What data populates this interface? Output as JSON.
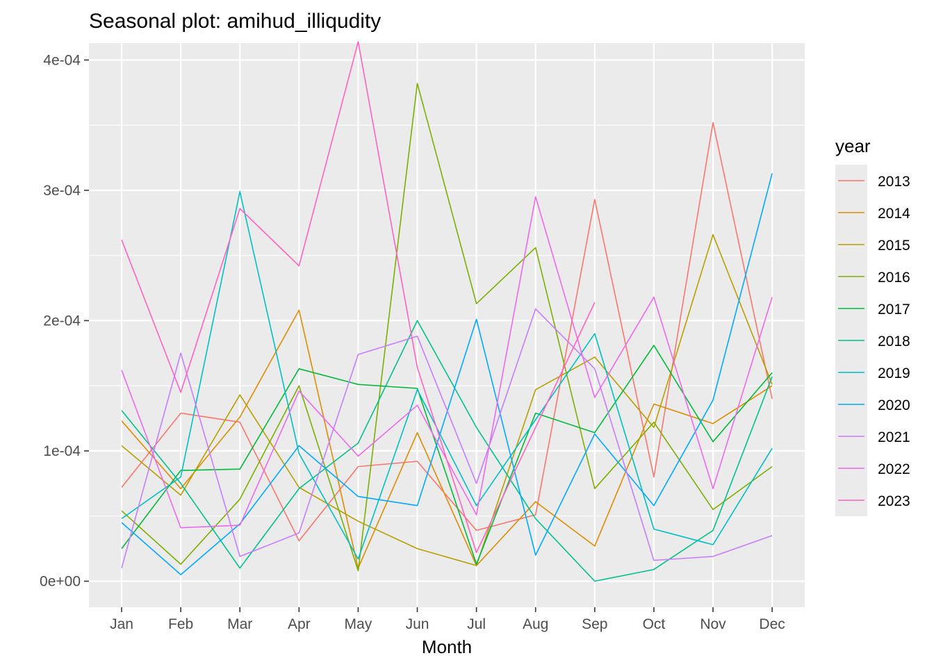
{
  "chart_data": {
    "type": "line",
    "title": "Seasonal plot: amihud_illiqudity",
    "xlabel": "Month",
    "ylabel": "",
    "categories": [
      "Jan",
      "Feb",
      "Mar",
      "Apr",
      "May",
      "Jun",
      "Jul",
      "Aug",
      "Sep",
      "Oct",
      "Nov",
      "Dec"
    ],
    "ylim": [
      -2e-05,
      0.000413
    ],
    "yticks": [
      0,
      0.0001,
      0.0002,
      0.0003,
      0.0004
    ],
    "ytick_labels": [
      "0e+00",
      "1e-04",
      "2e-04",
      "3e-04",
      "4e-04"
    ],
    "grid": true,
    "legend": {
      "title": "year",
      "position": "right"
    },
    "series": [
      {
        "name": "2013",
        "color": "#F8766D",
        "values": [
          7.2e-05,
          0.000129,
          0.000122,
          3.1e-05,
          8.8e-05,
          9.2e-05,
          3.9e-05,
          5.1e-05,
          0.000293,
          8e-05,
          0.000352,
          0.00014
        ]
      },
      {
        "name": "2014",
        "color": "#DE8C00",
        "values": [
          0.000123,
          7.1e-05,
          0.000126,
          0.000208,
          1e-05,
          0.000114,
          1.2e-05,
          6.1e-05,
          2.7e-05,
          0.000136,
          0.000121,
          0.00015
        ]
      },
      {
        "name": "2015",
        "color": "#B79F00",
        "values": [
          0.000104,
          6.6e-05,
          0.000143,
          7.2e-05,
          4.6e-05,
          2.5e-05,
          1.2e-05,
          0.000147,
          0.000172,
          0.000118,
          0.000266,
          0.000151
        ]
      },
      {
        "name": "2016",
        "color": "#7CAE00",
        "values": [
          5.4e-05,
          1.3e-05,
          6.3e-05,
          0.00015,
          8e-06,
          0.000382,
          0.000213,
          0.000256,
          7.1e-05,
          0.000122,
          5.5e-05,
          8.8e-05
        ]
      },
      {
        "name": "2017",
        "color": "#00BA38",
        "values": [
          2.5e-05,
          8.5e-05,
          8.6e-05,
          0.000163,
          0.000151,
          0.000148,
          1.3e-05,
          0.000129,
          0.000114,
          0.000181,
          0.000107,
          0.00016
        ]
      },
      {
        "name": "2018",
        "color": "#00C08B",
        "values": [
          0.000131,
          7.5e-05,
          1e-05,
          7.1e-05,
          0.000106,
          0.0002,
          0.000118,
          4.8e-05,
          0.0,
          9e-06,
          3.9e-05,
          0.000157
        ]
      },
      {
        "name": "2019",
        "color": "#00BFC4",
        "values": [
          4.8e-05,
          8e-05,
          0.000299,
          9.8e-05,
          1.7e-05,
          0.000147,
          5.8e-05,
          0.000124,
          0.00019,
          4e-05,
          2.8e-05,
          0.000102
        ]
      },
      {
        "name": "2020",
        "color": "#00A9FF",
        "values": [
          4.5e-05,
          5e-06,
          4.4e-05,
          0.000104,
          6.5e-05,
          5.8e-05,
          0.000201,
          2e-05,
          0.000113,
          5.8e-05,
          0.000139,
          0.000313
        ]
      },
      {
        "name": "2021",
        "color": "#C77CFF",
        "values": [
          1e-05,
          0.000175,
          1.9e-05,
          3.7e-05,
          0.000174,
          0.000188,
          7.5e-05,
          0.000209,
          0.000163,
          1.6e-05,
          1.9e-05,
          3.5e-05
        ]
      },
      {
        "name": "2022",
        "color": "#ED68ED",
        "values": [
          0.000162,
          4.1e-05,
          4.3e-05,
          0.000146,
          9.6e-05,
          0.000135,
          5.1e-05,
          0.000295,
          0.000141,
          0.000218,
          7.1e-05,
          0.000218
        ]
      },
      {
        "name": "2023",
        "color": "#FF61C3",
        "values": [
          0.000262,
          0.000145,
          0.000286,
          0.000242,
          0.000414,
          0.000164,
          2.2e-05,
          0.000118,
          0.000214,
          null,
          null,
          null
        ]
      }
    ]
  }
}
